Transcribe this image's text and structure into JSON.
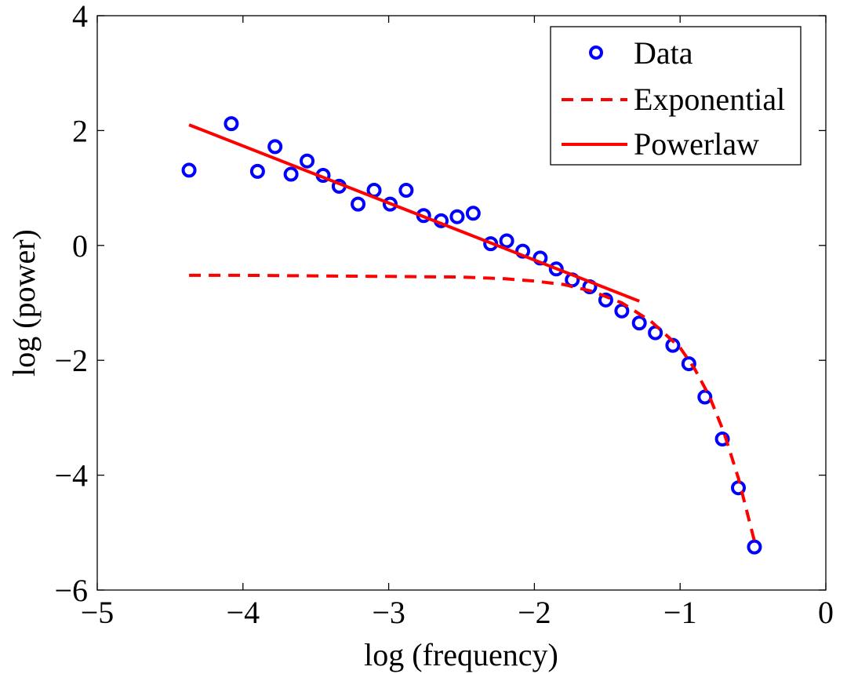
{
  "chart_data": {
    "type": "line",
    "xlabel": "log (frequency)",
    "ylabel": "log (power)",
    "xlim": [
      -5,
      0
    ],
    "ylim": [
      -6,
      4
    ],
    "xticks": [
      -5,
      -4,
      -3,
      -2,
      -1,
      0
    ],
    "yticks": [
      -6,
      -4,
      -2,
      0,
      2,
      4
    ],
    "xtick_labels": [
      "−5",
      "−4",
      "−3",
      "−2",
      "−1",
      "0"
    ],
    "ytick_labels": [
      "−6",
      "−4",
      "−2",
      "0",
      "2",
      "4"
    ],
    "grid": false,
    "legend_position": "top-right",
    "series": [
      {
        "name": "Data",
        "style": "markers-circle",
        "color": "#0000ff",
        "x": [
          -4.37,
          -4.08,
          -3.9,
          -3.78,
          -3.67,
          -3.56,
          -3.45,
          -3.34,
          -3.21,
          -3.1,
          -2.99,
          -2.88,
          -2.76,
          -2.64,
          -2.53,
          -2.42,
          -2.3,
          -2.19,
          -2.08,
          -1.96,
          -1.85,
          -1.74,
          -1.62,
          -1.51,
          -1.4,
          -1.28,
          -1.17,
          -1.05,
          -0.94,
          -0.83,
          -0.71,
          -0.6,
          -0.49
        ],
        "y": [
          1.31,
          2.12,
          1.29,
          1.72,
          1.24,
          1.47,
          1.22,
          1.03,
          0.72,
          0.96,
          0.72,
          0.96,
          0.52,
          0.43,
          0.5,
          0.56,
          0.03,
          0.08,
          -0.1,
          -0.22,
          -0.41,
          -0.6,
          -0.72,
          -0.95,
          -1.14,
          -1.35,
          -1.52,
          -1.74,
          -2.06,
          -2.64,
          -3.37,
          -4.22,
          -5.25
        ]
      },
      {
        "name": "Exponential",
        "style": "dashed",
        "color": "#ff0000",
        "x": [
          -4.37,
          -4.0,
          -3.5,
          -3.0,
          -2.5,
          -2.2,
          -2.0,
          -1.8,
          -1.6,
          -1.4,
          -1.2,
          -1.0,
          -0.9,
          -0.8,
          -0.7,
          -0.6,
          -0.49
        ],
        "y": [
          -0.52,
          -0.52,
          -0.53,
          -0.54,
          -0.55,
          -0.58,
          -0.62,
          -0.68,
          -0.8,
          -1.0,
          -1.32,
          -1.78,
          -2.15,
          -2.62,
          -3.25,
          -4.05,
          -5.15
        ]
      },
      {
        "name": "Powerlaw",
        "style": "solid",
        "color": "#ff0000",
        "x": [
          -4.37,
          -1.28
        ],
        "y": [
          2.1,
          -0.97
        ]
      }
    ]
  }
}
